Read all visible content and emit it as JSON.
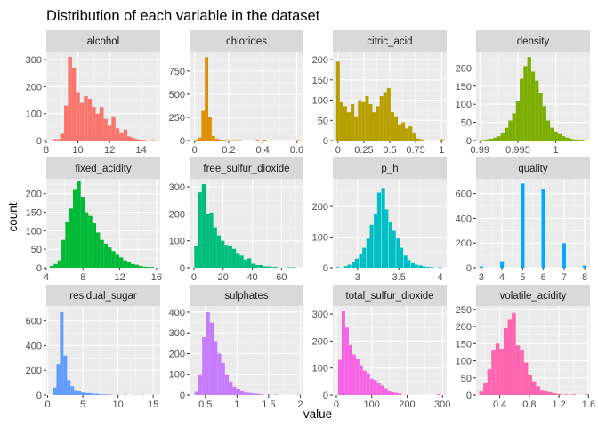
{
  "figure": {
    "title": "Distribution of each variable in the dataset",
    "xlabel": "value",
    "ylabel": "count"
  },
  "chart_data": [
    {
      "type": "bar",
      "title": "alcohol",
      "color": "#F8766D",
      "xlim": [
        8,
        15.2
      ],
      "ylim": [
        0,
        330
      ],
      "xticks": [
        8,
        10,
        12,
        14
      ],
      "yticks": [
        0,
        100,
        200,
        300
      ],
      "bin_width": 0.25,
      "bins": [
        8.5,
        8.75,
        9.0,
        9.25,
        9.5,
        9.75,
        10.0,
        10.25,
        10.5,
        10.75,
        11.0,
        11.25,
        11.5,
        11.75,
        12.0,
        12.25,
        12.5,
        12.75,
        13.0,
        13.25,
        13.5,
        13.75,
        14.0,
        14.25,
        14.5,
        14.75
      ],
      "counts": [
        5,
        5,
        25,
        130,
        310,
        270,
        180,
        140,
        165,
        155,
        125,
        100,
        125,
        80,
        55,
        90,
        45,
        30,
        40,
        15,
        10,
        5,
        3,
        2,
        0,
        2
      ]
    },
    {
      "type": "bar",
      "title": "chlorides",
      "color": "#DE8C00",
      "xlim": [
        -0.03,
        0.64
      ],
      "ylim": [
        0,
        960
      ],
      "xticks": [
        0.0,
        0.2,
        0.4,
        0.6
      ],
      "yticks": [
        0,
        250,
        500,
        750
      ],
      "bin_width": 0.02,
      "bins": [
        0.01,
        0.03,
        0.05,
        0.07,
        0.09,
        0.11,
        0.13,
        0.15,
        0.17,
        0.19,
        0.21,
        0.23,
        0.25,
        0.27,
        0.29,
        0.31,
        0.33,
        0.35,
        0.37,
        0.39,
        0.41,
        0.43,
        0.45,
        0.47,
        0.49,
        0.51,
        0.53,
        0.55,
        0.57,
        0.59,
        0.61
      ],
      "counts": [
        10,
        30,
        320,
        900,
        250,
        50,
        20,
        10,
        6,
        4,
        3,
        4,
        4,
        3,
        0,
        0,
        0,
        0,
        8,
        0,
        10,
        0,
        0,
        0,
        0,
        0,
        0,
        0,
        0,
        0,
        6
      ]
    },
    {
      "type": "bar",
      "title": "citric_acid",
      "color": "#B79F00",
      "xlim": [
        -0.05,
        1.05
      ],
      "ylim": [
        0,
        220
      ],
      "xticks": [
        0.0,
        0.25,
        0.5,
        0.75,
        1.0
      ],
      "yticks": [
        0,
        50,
        100,
        150,
        200
      ],
      "bin_width": 0.035,
      "bins": [
        0.0,
        0.035,
        0.07,
        0.105,
        0.14,
        0.175,
        0.21,
        0.245,
        0.28,
        0.315,
        0.35,
        0.385,
        0.42,
        0.455,
        0.49,
        0.525,
        0.56,
        0.595,
        0.63,
        0.665,
        0.7,
        0.735,
        0.77,
        0.805,
        1.0
      ],
      "counts": [
        195,
        95,
        85,
        70,
        90,
        60,
        100,
        95,
        110,
        90,
        70,
        85,
        110,
        120,
        130,
        70,
        60,
        40,
        45,
        30,
        35,
        20,
        5,
        3,
        3
      ]
    },
    {
      "type": "bar",
      "title": "density",
      "color": "#7CAE00",
      "xlim": [
        0.9895,
        1.0045
      ],
      "ylim": [
        0,
        245
      ],
      "xticks": [
        0.99,
        0.995,
        1.0
      ],
      "yticks": [
        0,
        50,
        100,
        150,
        200
      ],
      "bin_width": 0.0005,
      "bins": [
        0.9905,
        0.991,
        0.9915,
        0.992,
        0.9925,
        0.993,
        0.9935,
        0.994,
        0.9945,
        0.995,
        0.9955,
        0.996,
        0.9965,
        0.997,
        0.9975,
        0.998,
        0.9985,
        0.999,
        0.9995,
        1.0,
        1.0005,
        1.001,
        1.0015,
        1.002,
        1.0025,
        1.003,
        1.0035
      ],
      "counts": [
        2,
        3,
        5,
        8,
        12,
        20,
        35,
        55,
        75,
        110,
        170,
        205,
        230,
        190,
        165,
        130,
        95,
        55,
        35,
        25,
        18,
        12,
        8,
        5,
        3,
        2,
        2
      ]
    },
    {
      "type": "bar",
      "title": "fixed_acidity",
      "color": "#00BA38",
      "xlim": [
        4,
        16.4
      ],
      "ylim": [
        0,
        240
      ],
      "xticks": [
        4,
        8,
        12,
        16
      ],
      "yticks": [
        0,
        50,
        100,
        150,
        200
      ],
      "bin_width": 0.42,
      "bins": [
        4.6,
        5.02,
        5.44,
        5.86,
        6.28,
        6.7,
        7.12,
        7.54,
        7.96,
        8.38,
        8.8,
        9.22,
        9.64,
        10.06,
        10.48,
        10.9,
        11.32,
        11.74,
        12.16,
        12.58,
        13.0,
        13.42,
        13.84,
        14.26,
        14.68,
        15.1,
        15.52
      ],
      "counts": [
        5,
        10,
        20,
        75,
        125,
        160,
        210,
        235,
        190,
        150,
        140,
        120,
        95,
        75,
        65,
        55,
        45,
        35,
        28,
        20,
        15,
        10,
        8,
        5,
        3,
        2,
        2
      ]
    },
    {
      "type": "bar",
      "title": "free_sulfur_dioxide",
      "color": "#00BF7D",
      "xlim": [
        -3,
        75
      ],
      "ylim": [
        0,
        330
      ],
      "xticks": [
        0,
        20,
        40,
        60
      ],
      "yticks": [
        0,
        100,
        200,
        300
      ],
      "bin_width": 2.6,
      "bins": [
        1.5,
        4.1,
        6.7,
        9.3,
        11.9,
        14.5,
        17.1,
        19.7,
        22.3,
        24.9,
        27.5,
        30.1,
        32.7,
        35.3,
        37.9,
        40.5,
        43.1,
        45.7,
        48.3,
        50.9,
        53.5,
        56.1,
        65.0,
        68.0
      ],
      "counts": [
        80,
        280,
        310,
        200,
        205,
        150,
        120,
        100,
        85,
        80,
        70,
        55,
        45,
        30,
        35,
        15,
        10,
        10,
        5,
        5,
        3,
        3,
        2,
        2
      ]
    },
    {
      "type": "bar",
      "title": "p_h",
      "color": "#00BFC4",
      "xlim": [
        2.7,
        4.08
      ],
      "ylim": [
        0,
        290
      ],
      "xticks": [
        3.0,
        3.5,
        4.0
      ],
      "yticks": [
        0,
        100,
        200
      ],
      "bin_width": 0.045,
      "bins": [
        2.76,
        2.86,
        2.9,
        2.95,
        2.99,
        3.04,
        3.08,
        3.13,
        3.17,
        3.22,
        3.26,
        3.31,
        3.35,
        3.4,
        3.44,
        3.49,
        3.53,
        3.58,
        3.62,
        3.67,
        3.71,
        3.76,
        3.8,
        3.85,
        3.9,
        4.0
      ],
      "counts": [
        2,
        5,
        10,
        20,
        30,
        45,
        65,
        95,
        140,
        175,
        245,
        260,
        190,
        150,
        120,
        95,
        65,
        40,
        25,
        15,
        10,
        8,
        5,
        3,
        2,
        2
      ]
    },
    {
      "type": "bar",
      "title": "quality",
      "color": "#00A9FF",
      "xlim": [
        2.75,
        8.25
      ],
      "ylim": [
        0,
        720
      ],
      "xticks": [
        3,
        4,
        5,
        6,
        7,
        8
      ],
      "yticks": [
        0,
        200,
        400,
        600
      ],
      "bin_width": 0.18,
      "bins": [
        3,
        4,
        5,
        6,
        7,
        8
      ],
      "counts": [
        10,
        53,
        681,
        638,
        199,
        18
      ]
    },
    {
      "type": "bar",
      "title": "residual_sugar",
      "color": "#619CFF",
      "xlim": [
        -0.2,
        16
      ],
      "ylim": [
        0,
        720
      ],
      "xticks": [
        0,
        5,
        10,
        15
      ],
      "yticks": [
        0,
        200,
        400,
        600
      ],
      "bin_width": 0.5,
      "bins": [
        1.0,
        1.5,
        2.0,
        2.5,
        3.0,
        3.5,
        4.0,
        4.5,
        5.0,
        5.5,
        6.0,
        6.5,
        7.0,
        7.5,
        8.0,
        8.5,
        9.0,
        10.0,
        11.0,
        12.5,
        13.5,
        15.0
      ],
      "counts": [
        60,
        250,
        670,
        320,
        120,
        70,
        40,
        30,
        20,
        15,
        15,
        10,
        10,
        5,
        5,
        5,
        3,
        2,
        3,
        2,
        2,
        2
      ]
    },
    {
      "type": "bar",
      "title": "sulphates",
      "color": "#C77CFF",
      "xlim": [
        0.25,
        2.05
      ],
      "ylim": [
        0,
        430
      ],
      "xticks": [
        0.5,
        1.0,
        1.5,
        2.0
      ],
      "yticks": [
        0,
        100,
        200,
        300,
        400
      ],
      "bin_width": 0.06,
      "bins": [
        0.36,
        0.42,
        0.48,
        0.54,
        0.6,
        0.66,
        0.72,
        0.78,
        0.84,
        0.9,
        0.96,
        1.02,
        1.08,
        1.14,
        1.2,
        1.26,
        1.32,
        1.38,
        1.5,
        1.62,
        1.98
      ],
      "counts": [
        15,
        100,
        280,
        400,
        350,
        260,
        200,
        155,
        100,
        65,
        40,
        30,
        20,
        12,
        10,
        8,
        6,
        4,
        3,
        2,
        2
      ]
    },
    {
      "type": "bar",
      "title": "total_sulfur_dioxide",
      "color": "#F564E3",
      "xlim": [
        -10,
        312
      ],
      "ylim": [
        0,
        330
      ],
      "xticks": [
        0,
        100,
        200,
        300
      ],
      "yticks": [
        0,
        100,
        200,
        300
      ],
      "bin_width": 10,
      "bins": [
        10,
        20,
        30,
        40,
        50,
        60,
        70,
        80,
        90,
        100,
        110,
        120,
        130,
        140,
        150,
        160,
        170,
        180,
        290
      ],
      "counts": [
        130,
        310,
        250,
        185,
        150,
        135,
        110,
        90,
        80,
        60,
        55,
        45,
        35,
        25,
        15,
        10,
        8,
        5,
        3
      ]
    },
    {
      "type": "bar",
      "title": "volatile_acidity",
      "color": "#FF64B0",
      "xlim": [
        0.08,
        1.62
      ],
      "ylim": [
        0,
        260
      ],
      "xticks": [
        0.4,
        0.8,
        1.2,
        1.6
      ],
      "yticks": [
        0,
        50,
        100,
        150,
        200,
        250
      ],
      "bin_width": 0.055,
      "bins": [
        0.15,
        0.205,
        0.26,
        0.315,
        0.37,
        0.425,
        0.48,
        0.535,
        0.59,
        0.645,
        0.7,
        0.755,
        0.81,
        0.865,
        0.92,
        0.975,
        1.03,
        1.085,
        1.14,
        1.2,
        1.3,
        1.4,
        1.58
      ],
      "counts": [
        10,
        35,
        75,
        130,
        150,
        135,
        195,
        220,
        240,
        145,
        130,
        95,
        60,
        40,
        25,
        15,
        10,
        8,
        5,
        3,
        2,
        2,
        2
      ]
    }
  ]
}
